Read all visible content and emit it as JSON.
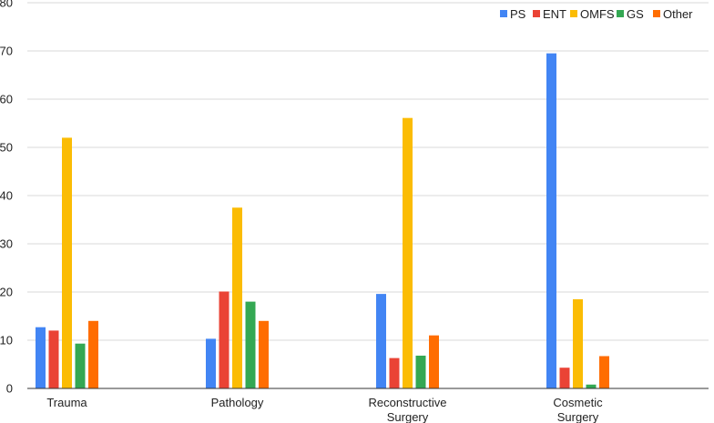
{
  "chart_data": {
    "type": "bar",
    "categories": [
      [
        "Trauma"
      ],
      [
        "Pathology"
      ],
      [
        "Reconstructive",
        "Surgery"
      ],
      [
        "Cosmetic",
        "Surgery"
      ]
    ],
    "series": [
      {
        "name": "PS",
        "color": "#4285f4",
        "values": [
          12.7,
          10.3,
          19.6,
          69.5
        ]
      },
      {
        "name": "ENT",
        "color": "#ea4335",
        "values": [
          12.0,
          20.1,
          6.3,
          4.3
        ]
      },
      {
        "name": "OMFS",
        "color": "#fbbc04",
        "values": [
          52.0,
          37.5,
          56.1,
          18.5
        ]
      },
      {
        "name": "GS",
        "color": "#34a853",
        "values": [
          9.3,
          18.0,
          6.8,
          0.8
        ]
      },
      {
        "name": "Other",
        "color": "#ff6d01",
        "values": [
          14.0,
          14.0,
          11.0,
          6.7
        ]
      }
    ],
    "yticks": [
      "0",
      "10",
      "20",
      "30",
      "40",
      "50",
      "60",
      "70",
      "80"
    ],
    "ylim": [
      0,
      80
    ],
    "grid": true,
    "legend": "top-right"
  }
}
